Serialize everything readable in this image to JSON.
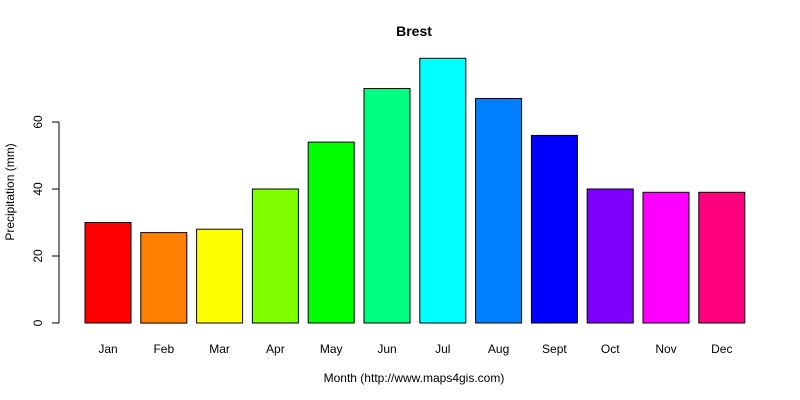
{
  "chart_data": {
    "type": "bar",
    "title": "Brest",
    "xlabel": "Month (http://www.maps4gis.com)",
    "ylabel": "Precipitation (mm)",
    "categories": [
      "Jan",
      "Feb",
      "Mar",
      "Apr",
      "May",
      "Jun",
      "Jul",
      "Aug",
      "Sept",
      "Oct",
      "Nov",
      "Dec"
    ],
    "values": [
      30,
      27,
      28,
      40,
      54,
      70,
      79,
      67,
      56,
      40,
      39,
      39
    ],
    "colors": [
      "#FF0000",
      "#FF8000",
      "#FFFF00",
      "#80FF00",
      "#00FF00",
      "#00FF80",
      "#00FFFF",
      "#0080FF",
      "#0000FF",
      "#8000FF",
      "#FF00FF",
      "#FF0080"
    ],
    "yticks": [
      0,
      20,
      40,
      60
    ],
    "ylim": [
      0,
      79
    ],
    "grid": false,
    "legend": "none"
  }
}
